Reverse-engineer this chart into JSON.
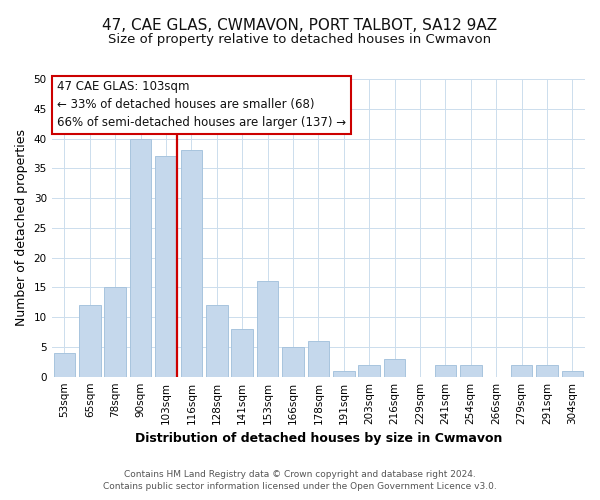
{
  "title": "47, CAE GLAS, CWMAVON, PORT TALBOT, SA12 9AZ",
  "subtitle": "Size of property relative to detached houses in Cwmavon",
  "xlabel": "Distribution of detached houses by size in Cwmavon",
  "ylabel": "Number of detached properties",
  "categories": [
    "53sqm",
    "65sqm",
    "78sqm",
    "90sqm",
    "103sqm",
    "116sqm",
    "128sqm",
    "141sqm",
    "153sqm",
    "166sqm",
    "178sqm",
    "191sqm",
    "203sqm",
    "216sqm",
    "229sqm",
    "241sqm",
    "254sqm",
    "266sqm",
    "279sqm",
    "291sqm",
    "304sqm"
  ],
  "values": [
    4,
    12,
    15,
    40,
    37,
    38,
    12,
    8,
    16,
    5,
    6,
    1,
    2,
    3,
    0,
    2,
    2,
    0,
    2,
    2,
    1
  ],
  "bar_color": "#c5d8ec",
  "bar_edge_color": "#a8c4de",
  "vline_idx": 4,
  "vline_color": "#cc0000",
  "ylim": [
    0,
    50
  ],
  "yticks": [
    0,
    5,
    10,
    15,
    20,
    25,
    30,
    35,
    40,
    45,
    50
  ],
  "annotation_title": "47 CAE GLAS: 103sqm",
  "annotation_line1": "← 33% of detached houses are smaller (68)",
  "annotation_line2": "66% of semi-detached houses are larger (137) →",
  "annotation_box_color": "#ffffff",
  "annotation_box_edge": "#cc0000",
  "footer1": "Contains HM Land Registry data © Crown copyright and database right 2024.",
  "footer2": "Contains public sector information licensed under the Open Government Licence v3.0.",
  "background_color": "#ffffff",
  "grid_color": "#ccdded",
  "title_fontsize": 11,
  "subtitle_fontsize": 9.5,
  "axis_label_fontsize": 9,
  "tick_fontsize": 7.5,
  "footer_fontsize": 6.5,
  "annotation_fontsize": 8.5
}
